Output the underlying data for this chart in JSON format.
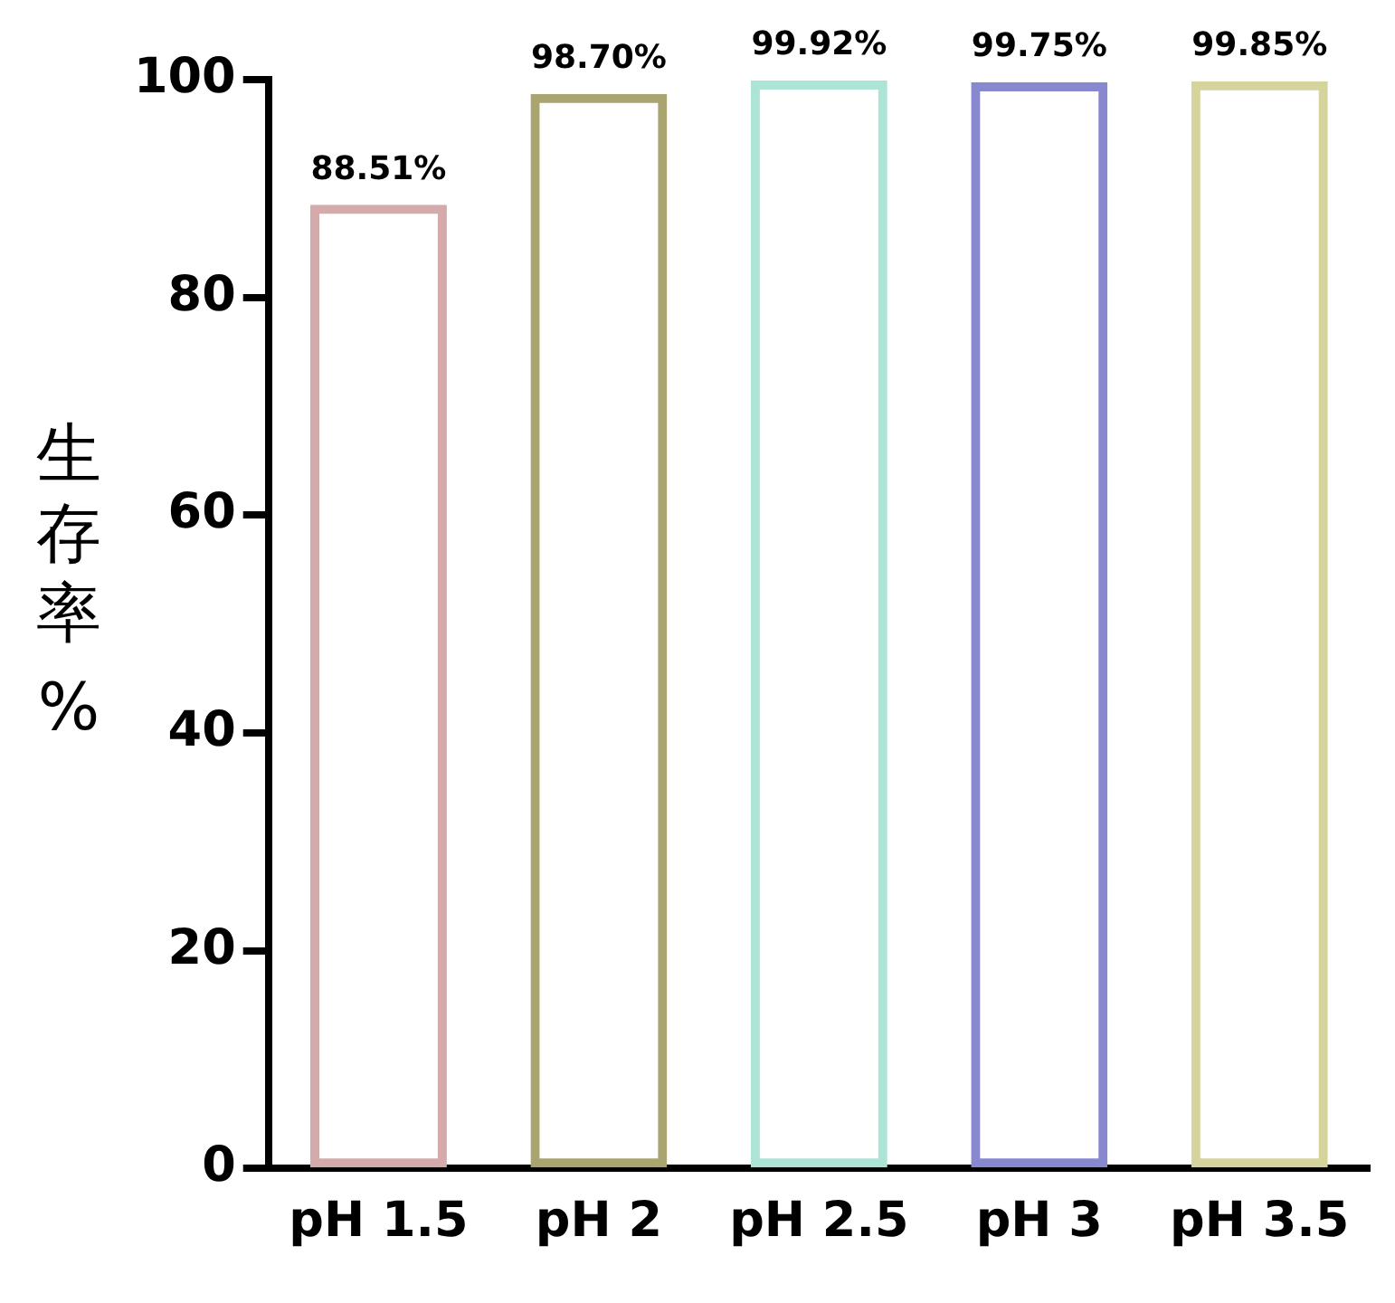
{
  "chart_data": {
    "type": "bar",
    "ylabel": "生存率 %",
    "categories": [
      "pH 1.5",
      "pH 2",
      "pH 2.5",
      "pH 3",
      "pH 3.5"
    ],
    "values": [
      88.51,
      98.7,
      99.92,
      99.75,
      99.85
    ],
    "colors": [
      "#d4aaaa",
      "#aaa46e",
      "#ace4d6",
      "#8888d0",
      "#d4d49c"
    ],
    "value_labels": [
      "88.51%",
      "98.70%",
      "99.92%",
      "99.75%",
      "99.85%"
    ],
    "ylim": [
      0,
      100
    ],
    "yticks": [
      0,
      20,
      40,
      60,
      80,
      100
    ],
    "grid": false,
    "legend": false
  }
}
